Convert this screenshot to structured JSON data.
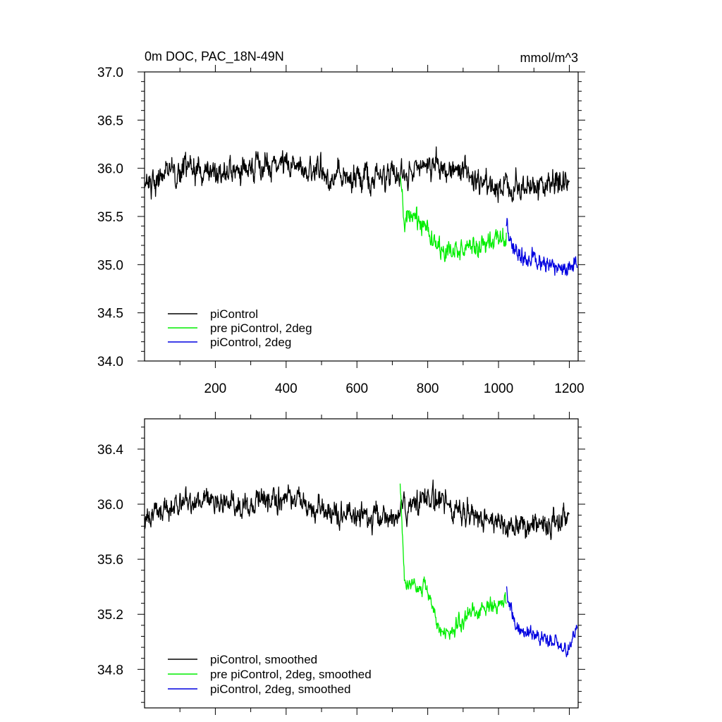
{
  "chart_data": [
    {
      "type": "line",
      "title_left": "0m DOC, PAC_18N-49N",
      "title_right": "mmol/m^3",
      "xlim": [
        0,
        1225
      ],
      "ylim": [
        34.0,
        37.0
      ],
      "x_ticks": [
        200,
        400,
        600,
        800,
        1000,
        1200
      ],
      "x_tick_labels": [
        "200",
        "400",
        "600",
        "800",
        "1000",
        "1200"
      ],
      "y_ticks": [
        34.0,
        34.5,
        35.0,
        35.5,
        36.0,
        36.5,
        37.0
      ],
      "y_tick_labels": [
        "34.0",
        "34.5",
        "35.0",
        "35.5",
        "36.0",
        "36.5",
        "37.0"
      ],
      "series": [
        {
          "name": "piControl",
          "color": "#000000",
          "x_start": 0,
          "x_end": 1200,
          "profile": [
            [
              0,
              35.85
            ],
            [
              100,
              36.0
            ],
            [
              200,
              35.95
            ],
            [
              300,
              36.0
            ],
            [
              400,
              36.05
            ],
            [
              500,
              35.95
            ],
            [
              600,
              35.9
            ],
            [
              700,
              35.9
            ],
            [
              800,
              36.05
            ],
            [
              900,
              35.95
            ],
            [
              1000,
              35.8
            ],
            [
              1100,
              35.8
            ],
            [
              1200,
              35.85
            ]
          ],
          "noise": 0.24,
          "bounds": [
            35.02,
            36.82
          ]
        },
        {
          "name": "pre piControl, 2deg",
          "color": "#00ee00",
          "x_start": 722,
          "x_end": 1022,
          "profile": [
            [
              722,
              35.9
            ],
            [
              735,
              35.4
            ],
            [
              760,
              35.5
            ],
            [
              800,
              35.4
            ],
            [
              840,
              35.1
            ],
            [
              880,
              35.15
            ],
            [
              920,
              35.2
            ],
            [
              960,
              35.2
            ],
            [
              1000,
              35.25
            ],
            [
              1022,
              35.3
            ]
          ],
          "noise": 0.19,
          "bounds": [
            34.57,
            36.5
          ]
        },
        {
          "name": "piControl, 2deg",
          "color": "#0000e0",
          "x_start": 1022,
          "x_end": 1222,
          "profile": [
            [
              1022,
              35.4
            ],
            [
              1050,
              35.1
            ],
            [
              1100,
              35.05
            ],
            [
              1150,
              35.0
            ],
            [
              1200,
              34.95
            ],
            [
              1222,
              35.0
            ]
          ],
          "noise": 0.17,
          "bounds": [
            34.37,
            35.85
          ]
        }
      ],
      "legend": [
        {
          "label": "piControl",
          "color": "#000000"
        },
        {
          "label": "pre piControl, 2deg",
          "color": "#00ee00"
        },
        {
          "label": "piControl, 2deg",
          "color": "#0000e0"
        }
      ]
    },
    {
      "type": "line",
      "xlim": [
        0,
        1225
      ],
      "ylim": [
        34.52,
        36.62
      ],
      "x_ticks": [
        200,
        400,
        600,
        800,
        1000,
        1200
      ],
      "y_ticks": [
        34.8,
        35.2,
        35.6,
        36.0,
        36.4
      ],
      "y_tick_labels": [
        "34.8",
        "35.2",
        "35.6",
        "36.0",
        "36.4"
      ],
      "series": [
        {
          "name": "piControl, smoothed",
          "color": "#000000",
          "x_start": 0,
          "x_end": 1200,
          "profile": [
            [
              0,
              35.9
            ],
            [
              100,
              36.0
            ],
            [
              200,
              36.0
            ],
            [
              300,
              36.0
            ],
            [
              400,
              36.05
            ],
            [
              500,
              35.95
            ],
            [
              600,
              35.9
            ],
            [
              700,
              35.9
            ],
            [
              800,
              36.05
            ],
            [
              900,
              35.95
            ],
            [
              1000,
              35.85
            ],
            [
              1100,
              35.85
            ],
            [
              1200,
              35.9
            ]
          ],
          "noise": 0.16,
          "bounds": [
            35.42,
            36.46
          ]
        },
        {
          "name": "pre piControl, 2deg, smoothed",
          "color": "#00ee00",
          "x_start": 722,
          "x_end": 1022,
          "profile": [
            [
              722,
              36.15
            ],
            [
              735,
              35.4
            ],
            [
              760,
              35.45
            ],
            [
              800,
              35.35
            ],
            [
              840,
              35.05
            ],
            [
              880,
              35.1
            ],
            [
              920,
              35.2
            ],
            [
              960,
              35.25
            ],
            [
              1000,
              35.25
            ],
            [
              1022,
              35.3
            ]
          ],
          "noise": 0.1,
          "bounds": [
            34.86,
            36.15
          ]
        },
        {
          "name": "piControl, 2deg, smoothed",
          "color": "#0000e0",
          "x_start": 1022,
          "x_end": 1222,
          "profile": [
            [
              1022,
              35.4
            ],
            [
              1050,
              35.1
            ],
            [
              1100,
              35.05
            ],
            [
              1150,
              35.0
            ],
            [
              1200,
              34.95
            ],
            [
              1222,
              35.15
            ]
          ],
          "noise": 0.1,
          "bounds": [
            34.68,
            35.52
          ]
        }
      ],
      "legend": [
        {
          "label": "piControl, smoothed",
          "color": "#000000"
        },
        {
          "label": "pre piControl, 2deg, smoothed",
          "color": "#00ee00"
        },
        {
          "label": "piControl, 2deg, smoothed",
          "color": "#0000e0"
        }
      ]
    }
  ]
}
